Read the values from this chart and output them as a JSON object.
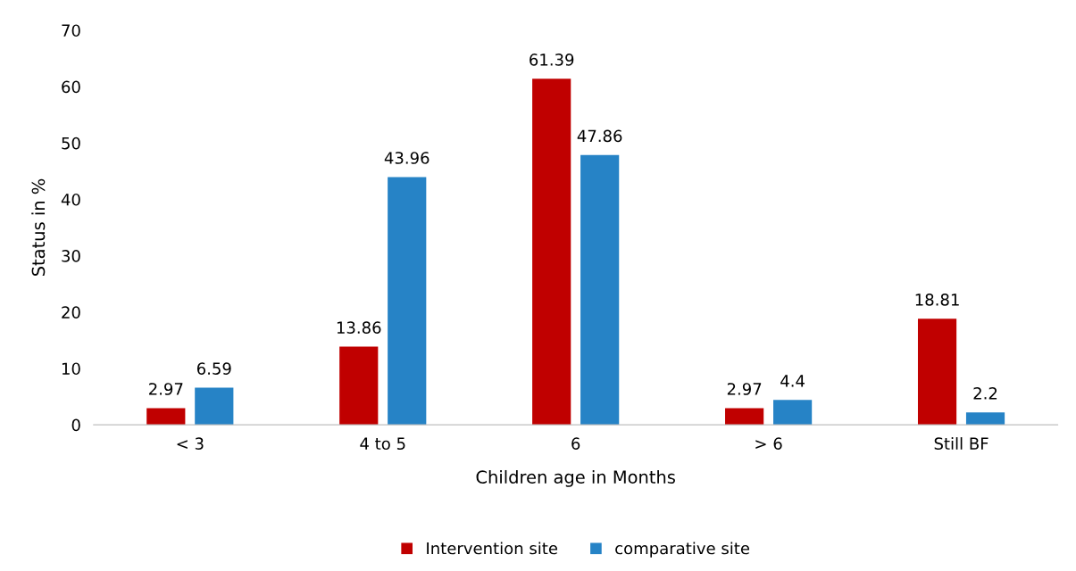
{
  "chart_data": {
    "type": "bar",
    "xlabel": "Children age in Months",
    "ylabel": "Status in %",
    "categories": [
      "< 3",
      "4 to 5",
      "6",
      "> 6",
      "Still BF"
    ],
    "series": [
      {
        "name": "Intervention site",
        "color": "#c00000",
        "values": [
          2.97,
          13.86,
          61.39,
          2.97,
          18.81
        ]
      },
      {
        "name": "comparative site",
        "color": "#2683c6",
        "values": [
          6.59,
          43.96,
          47.86,
          4.4,
          2.2
        ]
      }
    ],
    "ylim": [
      0,
      70
    ],
    "yticks": [
      0,
      10,
      20,
      30,
      40,
      50,
      60,
      70
    ],
    "grid": false,
    "legend": "bottom",
    "data_labels": true
  }
}
